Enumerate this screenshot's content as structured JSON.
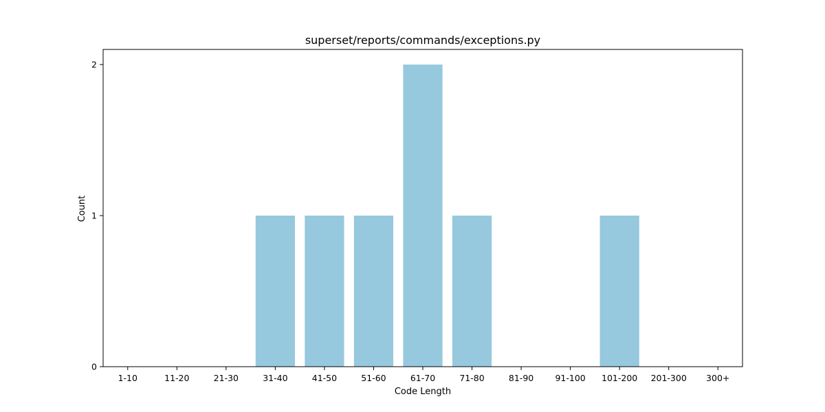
{
  "chart_data": {
    "type": "bar",
    "title": "superset/reports/commands/exceptions.py",
    "xlabel": "Code Length",
    "ylabel": "Count",
    "categories": [
      "1-10",
      "11-20",
      "21-30",
      "31-40",
      "41-50",
      "51-60",
      "61-70",
      "71-80",
      "81-90",
      "91-100",
      "101-200",
      "201-300",
      "300+"
    ],
    "values": [
      0,
      0,
      0,
      1,
      1,
      1,
      2,
      1,
      0,
      0,
      1,
      0,
      0
    ],
    "ylim": [
      0,
      2.1
    ],
    "yticks": [
      0,
      1,
      2
    ],
    "bar_color": "#96c9dd",
    "grid": false,
    "legend": "none"
  }
}
